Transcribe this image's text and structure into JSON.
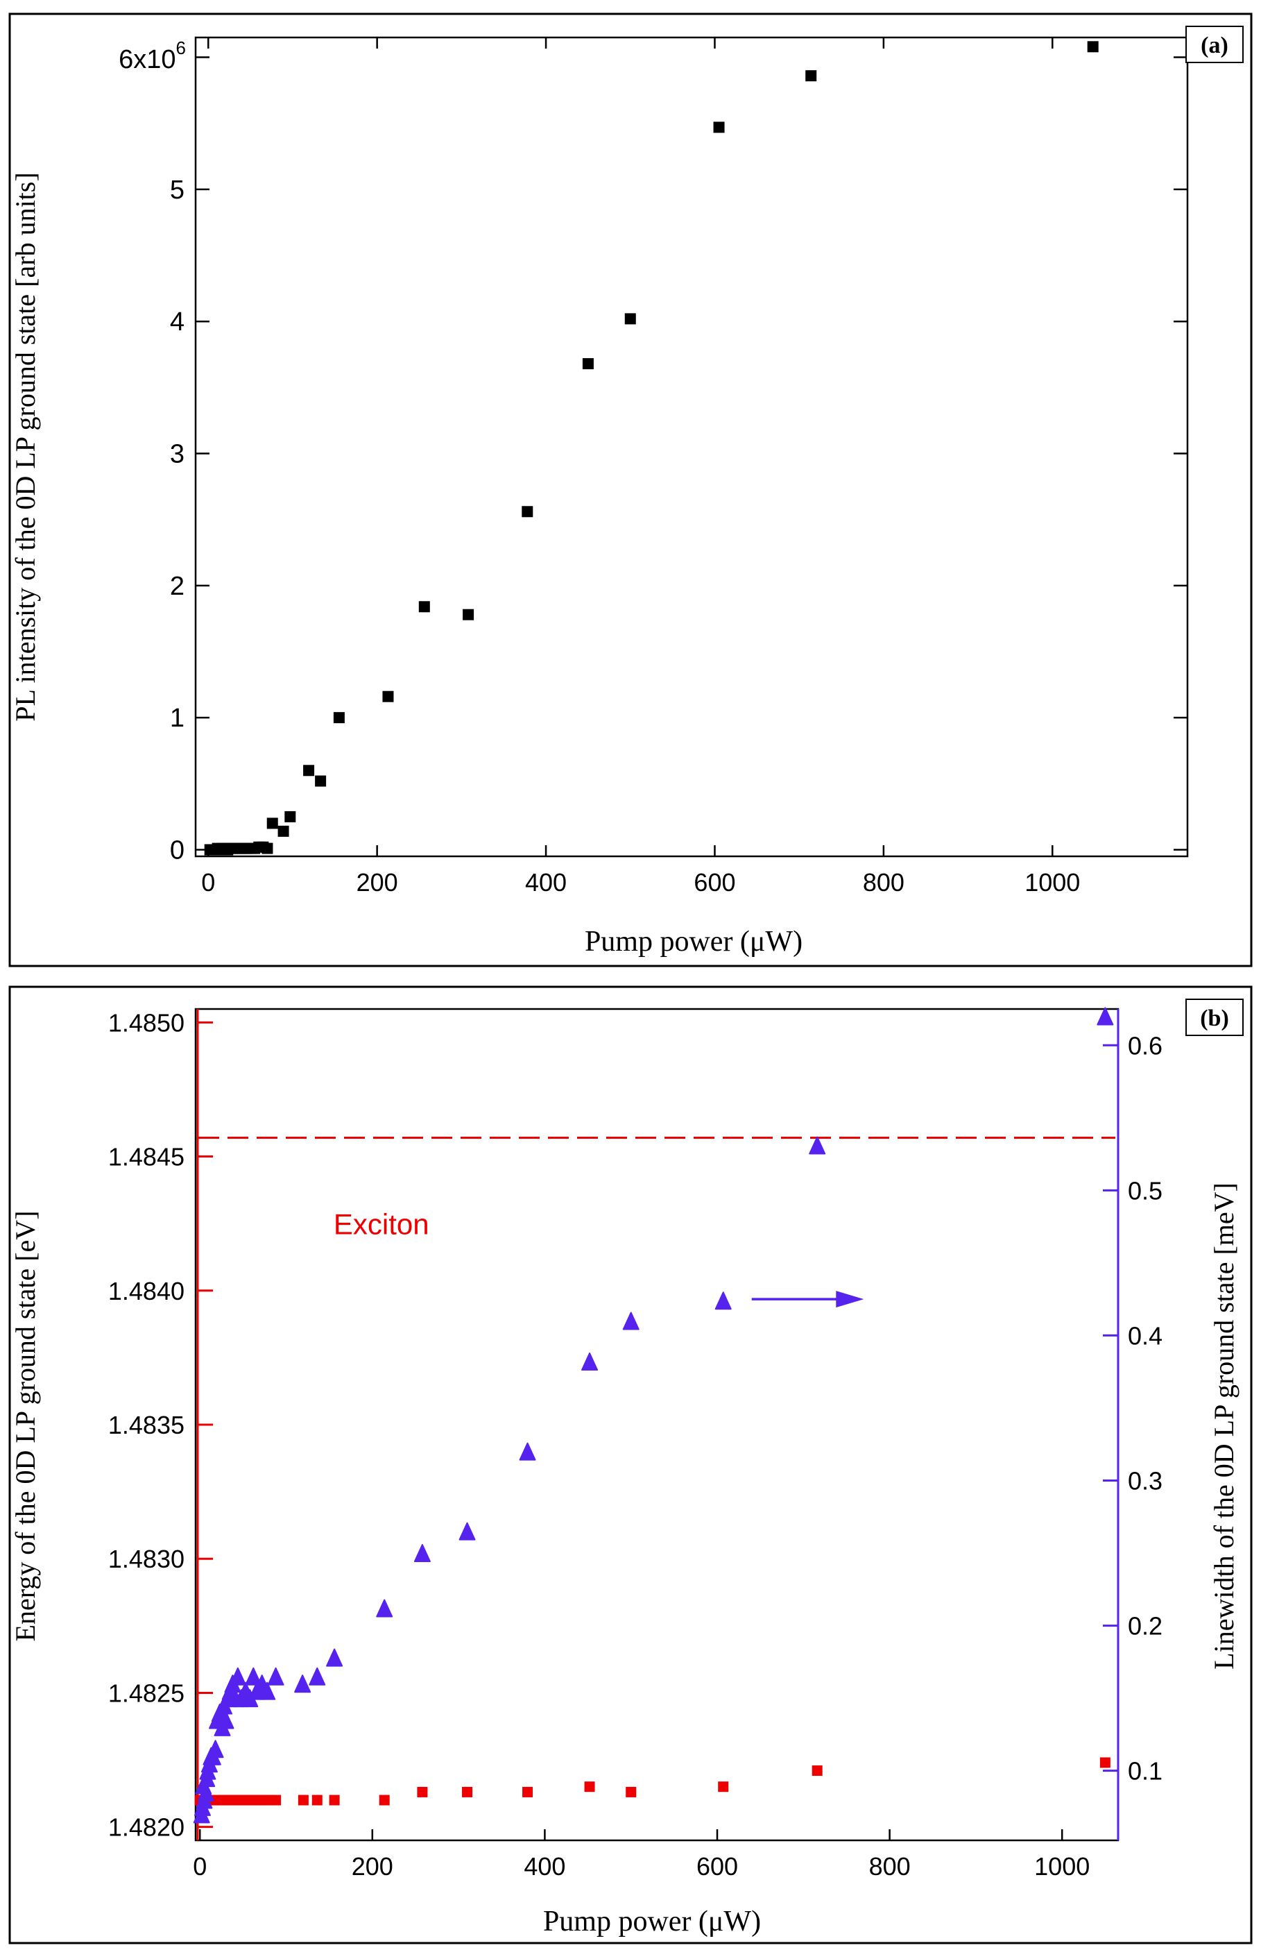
{
  "chart_data": [
    {
      "type": "scatter",
      "panel_label": "(a)",
      "xlabel": "Pump power (μW)",
      "ylabel": "PL intensity of the 0D LP ground state  [arb units]",
      "xlim": [
        -15,
        1160
      ],
      "ylim": [
        -0.05,
        6.15
      ],
      "x_ticks": [
        0,
        200,
        400,
        600,
        800,
        1000
      ],
      "x_tick_labels": [
        "0",
        "200",
        "400",
        "600",
        "800",
        "1000"
      ],
      "y_ticks": [
        0,
        1,
        2,
        3,
        4,
        5,
        6
      ],
      "y_tick_labels": [
        "0",
        "1",
        "2",
        "3",
        "4",
        "5",
        ""
      ],
      "y_top_label_base": "6x10",
      "y_top_label_exp": "6",
      "y_multiplier": 1000000,
      "series": [
        {
          "name": "PL intensity",
          "color": "#000000",
          "marker": "square",
          "points": [
            [
              2,
              0.0
            ],
            [
              5,
              0.0
            ],
            [
              8,
              0.0
            ],
            [
              11,
              0.01
            ],
            [
              14,
              0.0
            ],
            [
              17,
              0.01
            ],
            [
              20,
              0.01
            ],
            [
              23,
              0.0
            ],
            [
              26,
              0.01
            ],
            [
              29,
              0.01
            ],
            [
              32,
              0.01
            ],
            [
              35,
              0.01
            ],
            [
              38,
              0.01
            ],
            [
              41,
              0.01
            ],
            [
              44,
              0.01
            ],
            [
              47,
              0.01
            ],
            [
              51,
              0.01
            ],
            [
              55,
              0.01
            ],
            [
              60,
              0.02
            ],
            [
              65,
              0.02
            ],
            [
              70,
              0.01
            ],
            [
              76,
              0.2
            ],
            [
              89,
              0.14
            ],
            [
              97,
              0.25
            ],
            [
              119,
              0.6
            ],
            [
              133,
              0.52
            ],
            [
              155,
              1.0
            ],
            [
              213,
              1.16
            ],
            [
              256,
              1.84
            ],
            [
              308,
              1.78
            ],
            [
              378,
              2.56
            ],
            [
              450,
              3.68
            ],
            [
              500,
              4.02
            ],
            [
              605,
              5.47
            ],
            [
              714,
              5.86
            ],
            [
              1048,
              6.08
            ]
          ]
        }
      ]
    },
    {
      "type": "scatter",
      "panel_label": "(b)",
      "xlabel": "Pump power (μW)",
      "ylabel_left": "Energy of the 0D LP ground state [eV]",
      "ylabel_right": "Linewidth of the 0D LP ground state [meV]",
      "xlim": [
        -5,
        1065
      ],
      "ylim_left": [
        1.48195,
        1.48505
      ],
      "ylim_right": [
        0.052,
        0.625
      ],
      "x_ticks": [
        0,
        200,
        400,
        600,
        800,
        1000
      ],
      "x_tick_labels": [
        "0",
        "200",
        "400",
        "600",
        "800",
        "1000"
      ],
      "y_left_ticks": [
        1.482,
        1.4825,
        1.483,
        1.4835,
        1.484,
        1.4845,
        1.485
      ],
      "y_left_tick_labels": [
        "1.4820",
        "1.4825",
        "1.4830",
        "1.4835",
        "1.4840",
        "1.4845",
        "1.4850"
      ],
      "y_right_ticks": [
        0.1,
        0.2,
        0.3,
        0.4,
        0.5,
        0.6
      ],
      "y_right_tick_labels": [
        "0.1",
        "0.2",
        "0.3",
        "0.4",
        "0.5",
        "0.6"
      ],
      "left_axis_color": "#ee0000",
      "right_axis_color": "#5522ee",
      "reference_line": {
        "name": "Exciton",
        "energy": 1.48457,
        "color": "#ee0000",
        "style": "dashed"
      },
      "annotations": [
        {
          "text": "Exciton",
          "x": 155,
          "energy": 1.48421,
          "color": "#ee0000"
        },
        {
          "type": "arrow",
          "from_x": 640,
          "to_x": 770,
          "linewidth": 0.425,
          "color": "#5522ee"
        }
      ],
      "series": [
        {
          "name": "Energy",
          "axis": "left",
          "color": "#ee0000",
          "marker": "square",
          "points": [
            [
              0,
              1.4821
            ],
            [
              5,
              1.4821
            ],
            [
              10,
              1.4821
            ],
            [
              15,
              1.4821
            ],
            [
              20,
              1.4821
            ],
            [
              25,
              1.4821
            ],
            [
              30,
              1.4821
            ],
            [
              35,
              1.4821
            ],
            [
              40,
              1.4821
            ],
            [
              45,
              1.4821
            ],
            [
              50,
              1.4821
            ],
            [
              55,
              1.4821
            ],
            [
              60,
              1.4821
            ],
            [
              65,
              1.4821
            ],
            [
              70,
              1.4821
            ],
            [
              75,
              1.4821
            ],
            [
              80,
              1.4821
            ],
            [
              88,
              1.4821
            ],
            [
              120,
              1.4821
            ],
            [
              136,
              1.4821
            ],
            [
              156,
              1.4821
            ],
            [
              214,
              1.4821
            ],
            [
              258,
              1.48213
            ],
            [
              310,
              1.48213
            ],
            [
              380,
              1.48213
            ],
            [
              452,
              1.48215
            ],
            [
              500,
              1.48213
            ],
            [
              607,
              1.48215
            ],
            [
              716,
              1.48221
            ],
            [
              1050,
              1.48224
            ]
          ]
        },
        {
          "name": "Linewidth",
          "axis": "right",
          "color": "#5522ee",
          "marker": "triangle",
          "points": [
            [
              2,
              0.07
            ],
            [
              3,
              0.075
            ],
            [
              4,
              0.09
            ],
            [
              5,
              0.08
            ],
            [
              7,
              0.085
            ],
            [
              8,
              0.095
            ],
            [
              9,
              0.1
            ],
            [
              11,
              0.105
            ],
            [
              13,
              0.11
            ],
            [
              15,
              0.11
            ],
            [
              18,
              0.115
            ],
            [
              20,
              0.135
            ],
            [
              23,
              0.14
            ],
            [
              26,
              0.13
            ],
            [
              28,
              0.145
            ],
            [
              30,
              0.135
            ],
            [
              33,
              0.15
            ],
            [
              35,
              0.155
            ],
            [
              38,
              0.16
            ],
            [
              41,
              0.15
            ],
            [
              44,
              0.165
            ],
            [
              48,
              0.15
            ],
            [
              53,
              0.155
            ],
            [
              58,
              0.15
            ],
            [
              62,
              0.165
            ],
            [
              66,
              0.155
            ],
            [
              72,
              0.16
            ],
            [
              78,
              0.155
            ],
            [
              88,
              0.165
            ],
            [
              119,
              0.16
            ],
            [
              136,
              0.165
            ],
            [
              156,
              0.178
            ],
            [
              214,
              0.212
            ],
            [
              258,
              0.25
            ],
            [
              310,
              0.265
            ],
            [
              380,
              0.32
            ],
            [
              452,
              0.382
            ],
            [
              500,
              0.41
            ],
            [
              607,
              0.424
            ],
            [
              716,
              0.531
            ],
            [
              1050,
              0.62
            ]
          ]
        }
      ]
    }
  ]
}
